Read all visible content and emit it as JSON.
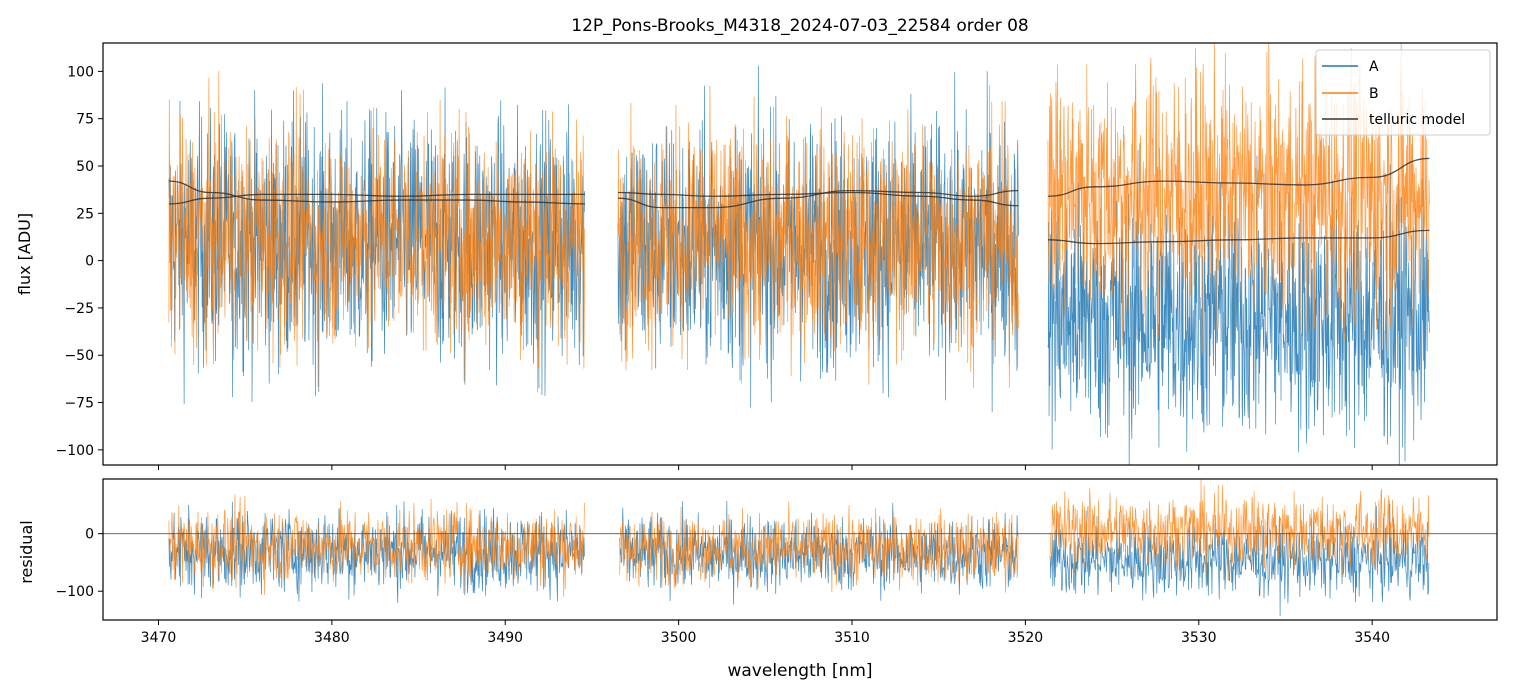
{
  "figure": {
    "title": "12P_Pons-Brooks_M4318_2024-07-03_22584  order 08"
  },
  "colors": {
    "A": "#1f77b4",
    "B": "#ff7f0e",
    "telluric": "#333333",
    "zero_line": "#555555"
  },
  "chart_data": [
    {
      "type": "line",
      "panel": "flux",
      "ylabel": "flux [ADU]",
      "xlim": [
        3466.8,
        3547.2
      ],
      "ylim": [
        -108,
        115
      ],
      "xticks": [
        3470,
        3480,
        3490,
        3500,
        3510,
        3520,
        3530,
        3540
      ],
      "yticks": [
        -100,
        -75,
        -50,
        -25,
        0,
        25,
        50,
        75,
        100
      ],
      "ytick_labels": [
        "−100",
        "−75",
        "−50",
        "−25",
        "0",
        "25",
        "50",
        "75",
        "100"
      ],
      "segments": [
        {
          "x_start": 3470.6,
          "x_end": 3494.6,
          "A": {
            "center": 10,
            "spread": 55
          },
          "B": {
            "center": 12,
            "spread": 50
          }
        },
        {
          "x_start": 3496.5,
          "x_end": 3519.6,
          "A": {
            "center": 8,
            "spread": 55
          },
          "B": {
            "center": 12,
            "spread": 50
          }
        },
        {
          "x_start": 3521.3,
          "x_end": 3543.3,
          "A": {
            "center": -30,
            "spread": 55
          },
          "B": {
            "center": 35,
            "spread": 55
          }
        }
      ],
      "series": [
        {
          "name": "A",
          "description_color": "#1f77b4"
        },
        {
          "name": "B",
          "description_color": "#ff7f0e"
        },
        {
          "name": "telluric model"
        }
      ],
      "telluric_model": [
        {
          "x": [
            3470.6,
            3473,
            3476,
            3480,
            3484,
            3488,
            3491,
            3494.6
          ],
          "y": [
            42,
            36,
            32,
            31,
            32,
            32,
            31,
            30
          ]
        },
        {
          "x": [
            3470.6,
            3473,
            3476,
            3480,
            3484,
            3488,
            3491,
            3494.6
          ],
          "y": [
            30,
            33,
            35,
            35,
            34,
            35,
            35,
            35
          ]
        },
        {
          "x": [
            3496.5,
            3499,
            3502,
            3506,
            3510,
            3514,
            3517,
            3519.6
          ],
          "y": [
            36,
            35,
            34,
            35,
            36,
            34,
            32,
            29
          ]
        },
        {
          "x": [
            3496.5,
            3499,
            3502,
            3506,
            3510,
            3514,
            3517,
            3519.6
          ],
          "y": [
            33,
            28,
            28,
            33,
            37,
            36,
            34,
            37
          ]
        },
        {
          "x": [
            3521.3,
            3524,
            3528,
            3532,
            3536,
            3540,
            3543.3
          ],
          "y": [
            34,
            39,
            42,
            41,
            40,
            44,
            54
          ]
        },
        {
          "x": [
            3521.3,
            3524,
            3528,
            3532,
            3536,
            3540,
            3543.3
          ],
          "y": [
            11,
            9,
            10,
            11,
            12,
            12,
            16
          ]
        }
      ],
      "legend": {
        "location": "top-right",
        "entries": [
          "A",
          "B",
          "telluric model"
        ]
      }
    },
    {
      "type": "line",
      "panel": "residual",
      "xlabel": "wavelength [nm]",
      "ylabel": "residual",
      "xlim": [
        3466.8,
        3547.2
      ],
      "ylim": [
        -150,
        95
      ],
      "xticks": [
        3470,
        3480,
        3490,
        3500,
        3510,
        3520,
        3530,
        3540
      ],
      "xtick_labels": [
        "3470",
        "3480",
        "3490",
        "3500",
        "3510",
        "3520",
        "3530",
        "3540"
      ],
      "yticks": [
        -100,
        0
      ],
      "ytick_labels": [
        "−100",
        "0"
      ],
      "segments": [
        {
          "x_start": 3470.6,
          "x_end": 3494.6,
          "A": {
            "center": -30,
            "spread": 60
          },
          "B": {
            "center": -20,
            "spread": 55
          }
        },
        {
          "x_start": 3496.6,
          "x_end": 3519.6,
          "A": {
            "center": -35,
            "spread": 55
          },
          "B": {
            "center": -25,
            "spread": 50
          }
        },
        {
          "x_start": 3521.4,
          "x_end": 3543.3,
          "A": {
            "center": -45,
            "spread": 55
          },
          "B": {
            "center": 5,
            "spread": 55
          }
        }
      ],
      "zero_line": 0
    }
  ]
}
